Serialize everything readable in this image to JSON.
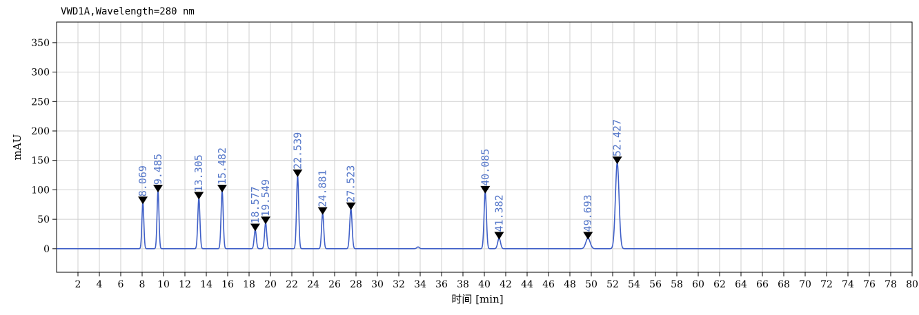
{
  "chart_data": {
    "type": "line",
    "signal_title": "VWD1A,Wavelength=280 nm",
    "xlabel": "时间 [min]",
    "ylabel": "mAU",
    "xlim": [
      0,
      80
    ],
    "ylim": [
      -40,
      385
    ],
    "x_ticks": [
      2,
      4,
      6,
      8,
      10,
      12,
      14,
      16,
      18,
      20,
      22,
      24,
      26,
      28,
      30,
      32,
      34,
      36,
      38,
      40,
      42,
      44,
      46,
      48,
      50,
      52,
      54,
      56,
      58,
      60,
      62,
      64,
      66,
      68,
      70,
      72,
      74,
      76,
      78,
      80
    ],
    "y_ticks": [
      0,
      50,
      100,
      150,
      200,
      250,
      300,
      350
    ],
    "grid": true,
    "peaks": [
      {
        "rt": "8.069",
        "x": 8.069,
        "height": 78,
        "width": 0.09
      },
      {
        "rt": "9.485",
        "x": 9.485,
        "height": 98,
        "width": 0.09
      },
      {
        "rt": "13.305",
        "x": 13.305,
        "height": 86,
        "width": 0.1
      },
      {
        "rt": "15.482",
        "x": 15.482,
        "height": 98,
        "width": 0.1
      },
      {
        "rt": "18.577",
        "x": 18.577,
        "height": 32,
        "width": 0.1
      },
      {
        "rt": "19.549",
        "x": 19.549,
        "height": 44,
        "width": 0.1
      },
      {
        "rt": "22.539",
        "x": 22.539,
        "height": 124,
        "width": 0.1
      },
      {
        "rt": "24.881",
        "x": 24.881,
        "height": 60,
        "width": 0.1
      },
      {
        "rt": "27.523",
        "x": 27.523,
        "height": 68,
        "width": 0.11
      },
      {
        "rt": "40.085",
        "x": 40.085,
        "height": 96,
        "width": 0.11
      },
      {
        "rt": "41.382",
        "x": 41.382,
        "height": 18,
        "width": 0.13
      },
      {
        "rt": "49.693",
        "x": 49.693,
        "height": 18,
        "width": 0.2
      },
      {
        "rt": "52.427",
        "x": 52.427,
        "height": 146,
        "width": 0.17
      }
    ],
    "minor_bumps": [
      {
        "x": 33.8,
        "height": 3,
        "width": 0.12
      }
    ],
    "colors": {
      "trace": "#3f5fc7",
      "label": "#5577c9",
      "marker": "#000000",
      "grid": "#cfcfcf",
      "axis": "#000000"
    }
  }
}
